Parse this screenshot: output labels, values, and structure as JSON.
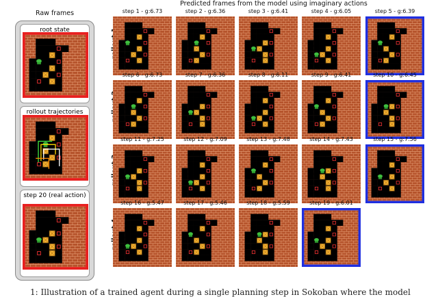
{
  "header_title": "Predicted frames from the model using imaginary actions",
  "side": {
    "title": "Raw frames",
    "boxes": [
      "root state",
      "rollout trajectories",
      "step 20 (real action)"
    ]
  },
  "rollouts": [
    "rollout 1",
    "rollout 2",
    "rollout 3",
    "rollout 4"
  ],
  "steps": [
    [
      "step 1 - g:6.73",
      "step 2 - g:6.36",
      "step 3 - g:6.41",
      "step 4 - g:6.05",
      "step 5 - g:6.39"
    ],
    [
      "step 6 - g:6.73",
      "step 7 - g:6.36",
      "step 8 - g:6.11",
      "step 9 - g:6.41",
      "step 10 - g:6.45"
    ],
    [
      "step 11 - g:7.25",
      "step 12 - g:7.09",
      "step 13 - g:7.48",
      "step 14 - g:7.43",
      "step 15 - g:7.56"
    ],
    [
      "step 16 - g:5.47",
      "step 17 - g:5.46",
      "step 18 - g:5.59",
      "step 19 - g:6.01"
    ]
  ],
  "caption": "1: Illustration of a trained agent during a single planning step in Sokoban where the model"
}
